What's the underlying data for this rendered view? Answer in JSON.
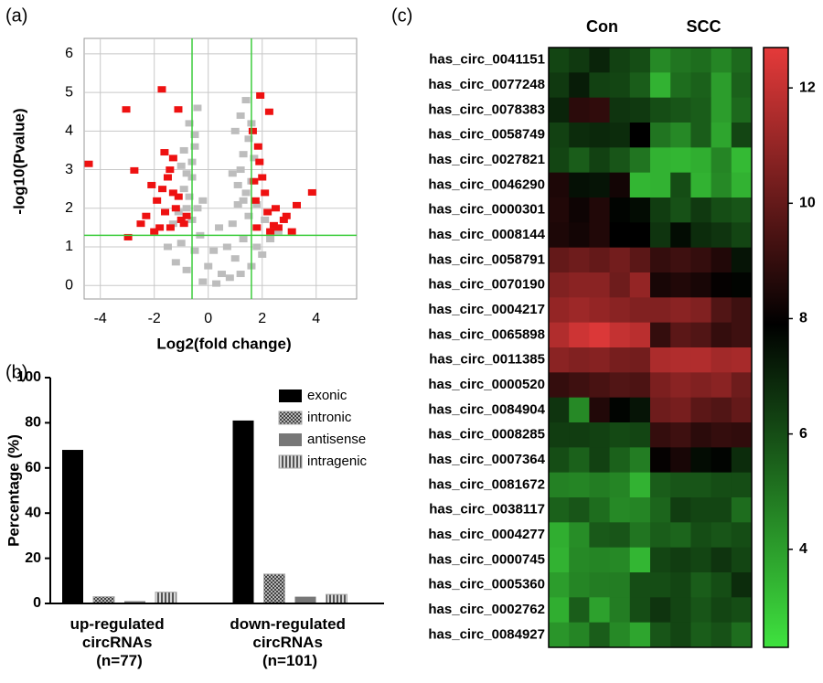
{
  "chart_data": [
    {
      "type": "scatter",
      "panel_label": "(a)",
      "x_label": "Log2(fold change)",
      "y_label": "-log10(Pvalue)",
      "xlim": [
        -4.6,
        5.5
      ],
      "ylim": [
        -0.35,
        6.4
      ],
      "xticks": [
        -4,
        -2,
        0,
        2,
        4
      ],
      "yticks": [
        0,
        1,
        2,
        3,
        4,
        5,
        6
      ],
      "grid": true,
      "threshold_x": [
        -0.6,
        1.6
      ],
      "threshold_y": 1.3,
      "threshold_color": "#3ccc3c",
      "series": [
        {
          "color": "#bdbdbd",
          "x": [
            -0.2,
            0.3,
            0.8,
            1.2,
            -0.8,
            1.6,
            -1.2,
            2.0,
            0.0,
            0.5,
            1.0,
            -0.5,
            1.8,
            -1.0,
            2.3,
            0.2,
            0.7,
            -0.3,
            1.3,
            -1.5,
            2.6,
            0.4,
            0.9,
            -0.6,
            1.5,
            -0.4,
            1.1,
            -0.7,
            1.4,
            -0.9,
            1.6,
            -0.8,
            1.2,
            -0.6,
            1.3,
            -0.9,
            1.7,
            -1.0,
            1.5,
            -0.5,
            1.0,
            -0.7,
            1.2,
            -0.4,
            1.4,
            -0.8,
            1.1,
            -0.6,
            1.3,
            -1.1,
            1.8,
            -1.3,
            2.1,
            -0.2,
            0.9,
            -0.5,
            1.6
          ],
          "values": [
            0.1,
            0.05,
            0.2,
            0.3,
            0.4,
            0.5,
            0.6,
            0.8,
            0.5,
            0.3,
            0.7,
            0.9,
            1.0,
            1.1,
            1.2,
            0.9,
            1.0,
            1.3,
            1.2,
            1.0,
            1.4,
            1.5,
            1.6,
            1.7,
            1.8,
            2.0,
            2.1,
            2.3,
            2.4,
            2.5,
            2.7,
            2.9,
            3.0,
            3.2,
            3.4,
            3.5,
            3.3,
            3.1,
            3.8,
            3.9,
            4.0,
            4.2,
            4.4,
            4.6,
            4.8,
            2.0,
            2.6,
            2.8,
            2.2,
            1.9,
            2.1,
            1.6,
            1.7,
            2.2,
            2.9,
            3.6,
            4.2
          ]
        },
        {
          "color": "#ee1111",
          "x": [
            -4.43,
            -3.04,
            -2.74,
            -2.97,
            -1.72,
            -1.62,
            -1.42,
            -1.11,
            1.93,
            2.26,
            3.85,
            3.28,
            2.43,
            -2.1,
            -1.9,
            -1.6,
            -1.3,
            -1.0,
            -2.3,
            -1.8,
            -1.5,
            -1.2,
            -0.9,
            -2.0,
            -1.4,
            -1.1,
            -0.8,
            -1.7,
            -2.5,
            -1.3,
            1.7,
            1.9,
            2.1,
            2.5,
            2.8,
            1.8,
            2.2,
            1.65,
            2.0,
            2.3,
            2.6,
            1.75,
            2.9,
            3.1,
            1.85
          ],
          "values": [
            3.15,
            4.56,
            2.98,
            1.25,
            5.08,
            3.45,
            3.0,
            4.56,
            4.92,
            4.5,
            2.41,
            2.08,
            1.56,
            2.6,
            2.2,
            1.9,
            2.4,
            1.7,
            1.8,
            1.5,
            2.8,
            2.0,
            1.6,
            1.4,
            1.5,
            2.3,
            1.8,
            2.5,
            1.6,
            3.3,
            2.7,
            3.2,
            2.4,
            2.0,
            1.7,
            1.5,
            1.9,
            4.0,
            2.8,
            1.4,
            1.5,
            2.2,
            1.8,
            1.4,
            3.6
          ]
        }
      ]
    },
    {
      "type": "bar",
      "panel_label": "(b)",
      "y_label": "Percentage (%)",
      "categories": [
        "up-regulated circRNAs (n=77)",
        "down-regulated circRNAs (n=101)"
      ],
      "ylim": [
        0,
        100
      ],
      "yticks": [
        0,
        20,
        40,
        60,
        80,
        100
      ],
      "legend": "top-right",
      "series": [
        {
          "name": "exonic",
          "color": "#000000",
          "pattern": "solid",
          "values": [
            68,
            81
          ]
        },
        {
          "name": "intronic",
          "color": "#8a8a8a",
          "pattern": "checker",
          "values": [
            3,
            13
          ]
        },
        {
          "name": "antisense",
          "color": "#777777",
          "pattern": "solid",
          "values": [
            1,
            3
          ]
        },
        {
          "name": "intragenic",
          "color": "#9a9a9a",
          "pattern": "stripes",
          "values": [
            5,
            4
          ]
        }
      ]
    },
    {
      "type": "heatmap",
      "panel_label": "(c)",
      "column_groups": [
        "Con",
        "SCC"
      ],
      "rows": [
        "has_circ_0041151",
        "has_circ_0077248",
        "has_circ_0078383",
        "has_circ_0058749",
        "has_circ_0027821",
        "has_circ_0046290",
        "has_circ_0000301",
        "has_circ_0008144",
        "has_circ_0058791",
        "has_circ_0070190",
        "has_circ_0004217",
        "has_circ_0065898",
        "has_circ_0011385",
        "has_circ_0000520",
        "has_circ_0084904",
        "has_circ_0008285",
        "has_circ_0007364",
        "has_circ_0081672",
        "has_circ_0038117",
        "has_circ_0004277",
        "has_circ_0000745",
        "has_circ_0005360",
        "has_circ_0002762",
        "has_circ_0084927"
      ],
      "values": [
        [
          6.2,
          6.5,
          7.0,
          6.3,
          6.0,
          4.5,
          5.0,
          5.2,
          4.6,
          5.3
        ],
        [
          6.5,
          7.2,
          6.3,
          6.2,
          5.6,
          3.5,
          5.2,
          5.5,
          4.0,
          5.5
        ],
        [
          7.0,
          8.8,
          8.9,
          6.6,
          6.5,
          6.0,
          5.8,
          5.6,
          4.0,
          5.3
        ],
        [
          6.3,
          6.8,
          6.9,
          6.8,
          7.9,
          5.0,
          4.5,
          5.6,
          3.8,
          6.2
        ],
        [
          6.2,
          5.6,
          6.3,
          5.8,
          5.0,
          3.5,
          3.4,
          3.6,
          4.6,
          3.3
        ],
        [
          8.5,
          7.5,
          7.4,
          8.3,
          3.4,
          3.5,
          6.0,
          3.5,
          4.5,
          3.5
        ],
        [
          8.6,
          8.2,
          8.6,
          7.8,
          7.6,
          6.4,
          5.9,
          6.5,
          6.0,
          5.8
        ],
        [
          8.5,
          8.3,
          8.6,
          7.9,
          7.9,
          6.6,
          7.6,
          6.8,
          6.6,
          6.2
        ],
        [
          10.0,
          10.2,
          10.0,
          10.3,
          9.8,
          9.0,
          9.2,
          9.0,
          8.6,
          7.4
        ],
        [
          10.6,
          10.8,
          10.8,
          10.2,
          11.0,
          8.4,
          8.6,
          8.4,
          8.0,
          7.8
        ],
        [
          11.0,
          11.2,
          11.0,
          10.8,
          10.6,
          10.6,
          10.8,
          10.6,
          9.6,
          9.2
        ],
        [
          11.6,
          12.2,
          12.5,
          12.0,
          11.8,
          9.0,
          9.8,
          9.6,
          9.0,
          9.2
        ],
        [
          10.8,
          10.6,
          10.7,
          10.4,
          10.3,
          11.5,
          11.6,
          11.6,
          11.3,
          11.4
        ],
        [
          9.0,
          9.2,
          9.4,
          9.6,
          9.5,
          10.5,
          10.8,
          10.6,
          10.8,
          10.2
        ],
        [
          6.6,
          4.5,
          8.6,
          7.8,
          7.4,
          10.2,
          10.4,
          9.8,
          9.6,
          10.0
        ],
        [
          6.4,
          6.4,
          6.3,
          6.1,
          6.2,
          9.0,
          9.2,
          8.8,
          9.0,
          8.9
        ],
        [
          6.0,
          5.5,
          6.3,
          5.5,
          4.8,
          8.0,
          8.4,
          7.6,
          7.8,
          6.8
        ],
        [
          4.7,
          4.6,
          4.8,
          4.6,
          3.5,
          5.6,
          5.8,
          5.8,
          6.0,
          6.0
        ],
        [
          5.5,
          5.8,
          5.2,
          4.5,
          4.6,
          5.4,
          6.4,
          6.2,
          6.2,
          5.2
        ],
        [
          3.6,
          4.4,
          5.7,
          5.8,
          5.0,
          5.6,
          5.4,
          6.0,
          5.8,
          6.0
        ],
        [
          3.5,
          4.5,
          4.6,
          4.5,
          3.4,
          6.2,
          6.4,
          6.2,
          6.6,
          6.2
        ],
        [
          4.0,
          4.6,
          4.8,
          4.8,
          6.0,
          6.0,
          6.2,
          5.6,
          6.0,
          6.8
        ],
        [
          3.6,
          5.6,
          3.9,
          4.8,
          6.0,
          6.6,
          6.2,
          5.8,
          6.2,
          6.0
        ],
        [
          4.2,
          4.6,
          5.6,
          4.5,
          3.8,
          5.8,
          6.2,
          5.6,
          5.9,
          5.2
        ]
      ],
      "clim": [
        2.3,
        12.7
      ],
      "cticks": [
        4,
        6,
        8,
        10,
        12
      ],
      "colormap": [
        "#3fe23f",
        "#000000",
        "#e53a3a"
      ],
      "colormap_stops": [
        2.3,
        7.9,
        12.7
      ]
    }
  ]
}
